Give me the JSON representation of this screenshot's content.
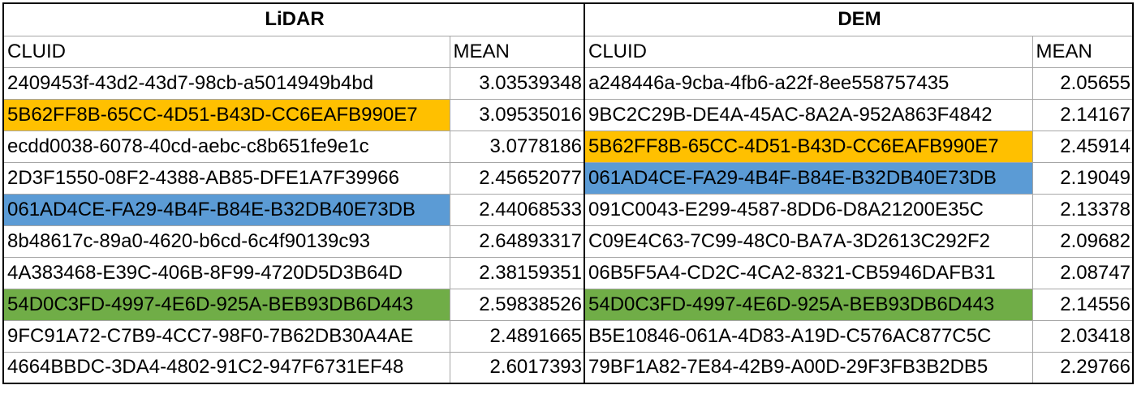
{
  "groups": {
    "lidar": {
      "title": "LiDAR"
    },
    "dem": {
      "title": "DEM"
    }
  },
  "columns": {
    "cluid": "CLUID",
    "mean": "MEAN"
  },
  "highlight_colors": {
    "orange": "#ffc000",
    "blue": "#5b9bd5",
    "green": "#70ad47"
  },
  "rows": [
    {
      "lidar_cluid": "2409453f-43d2-43d7-98cb-a5014949b4bd",
      "lidar_mean": "3.03539348",
      "lidar_hl": "",
      "dem_cluid": "a248446a-9cba-4fb6-a22f-8ee558757435",
      "dem_mean": "2.05655",
      "dem_hl": ""
    },
    {
      "lidar_cluid": "5B62FF8B-65CC-4D51-B43D-CC6EAFB990E7",
      "lidar_mean": "3.09535016",
      "lidar_hl": "orange",
      "dem_cluid": "9BC2C29B-DE4A-45AC-8A2A-952A863F4842",
      "dem_mean": "2.14167",
      "dem_hl": ""
    },
    {
      "lidar_cluid": "ecdd0038-6078-40cd-aebc-c8b651fe9e1c",
      "lidar_mean": "3.0778186",
      "lidar_hl": "",
      "dem_cluid": "5B62FF8B-65CC-4D51-B43D-CC6EAFB990E7",
      "dem_mean": "2.45914",
      "dem_hl": "orange"
    },
    {
      "lidar_cluid": "2D3F1550-08F2-4388-AB85-DFE1A7F39966",
      "lidar_mean": "2.45652077",
      "lidar_hl": "",
      "dem_cluid": "061AD4CE-FA29-4B4F-B84E-B32DB40E73DB",
      "dem_mean": "2.19049",
      "dem_hl": "blue"
    },
    {
      "lidar_cluid": "061AD4CE-FA29-4B4F-B84E-B32DB40E73DB",
      "lidar_mean": "2.44068533",
      "lidar_hl": "blue",
      "dem_cluid": "091C0043-E299-4587-8DD6-D8A21200E35C",
      "dem_mean": "2.13378",
      "dem_hl": ""
    },
    {
      "lidar_cluid": "8b48617c-89a0-4620-b6cd-6c4f90139c93",
      "lidar_mean": "2.64893317",
      "lidar_hl": "",
      "dem_cluid": "C09E4C63-7C99-48C0-BA7A-3D2613C292F2",
      "dem_mean": "2.09682",
      "dem_hl": ""
    },
    {
      "lidar_cluid": "4A383468-E39C-406B-8F99-4720D5D3B64D",
      "lidar_mean": "2.38159351",
      "lidar_hl": "",
      "dem_cluid": "06B5F5A4-CD2C-4CA2-8321-CB5946DAFB31",
      "dem_mean": "2.08747",
      "dem_hl": ""
    },
    {
      "lidar_cluid": "54D0C3FD-4997-4E6D-925A-BEB93DB6D443",
      "lidar_mean": "2.59838526",
      "lidar_hl": "green",
      "dem_cluid": "54D0C3FD-4997-4E6D-925A-BEB93DB6D443",
      "dem_mean": "2.14556",
      "dem_hl": "green"
    },
    {
      "lidar_cluid": "9FC91A72-C7B9-4CC7-98F0-7B62DB30A4AE",
      "lidar_mean": "2.4891665",
      "lidar_hl": "",
      "dem_cluid": "B5E10846-061A-4D83-A19D-C576AC877C5C",
      "dem_mean": "2.03418",
      "dem_hl": ""
    },
    {
      "lidar_cluid": "4664BBDC-3DA4-4802-91C2-947F6731EF48",
      "lidar_mean": "2.6017393",
      "lidar_hl": "",
      "dem_cluid": "79BF1A82-7E84-42B9-A00D-29F3FB3B2DB5",
      "dem_mean": "2.29766",
      "dem_hl": ""
    }
  ]
}
